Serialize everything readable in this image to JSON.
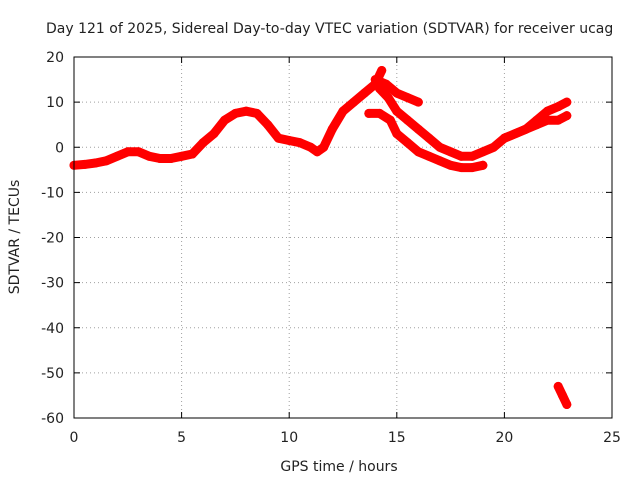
{
  "chart_data": {
    "type": "scatter",
    "title": "Day 121 of 2025, Sidereal Day-to-day VTEC variation (SDTVAR) for receiver ucag",
    "xlabel": "GPS time / hours",
    "ylabel": "SDTVAR / TECUs",
    "xlim": [
      0,
      25
    ],
    "ylim": [
      -60,
      20
    ],
    "xticks": [
      0,
      5,
      10,
      15,
      20,
      25
    ],
    "yticks": [
      -60,
      -50,
      -40,
      -30,
      -20,
      -10,
      0,
      10,
      20
    ],
    "grid": true,
    "legend": "none",
    "series": [
      {
        "name": "main-arc",
        "color": "#ff0000",
        "x": [
          0,
          0.5,
          1,
          1.5,
          2,
          2.5,
          3,
          3.5,
          4,
          4.5,
          5,
          5.5,
          6,
          6.5,
          7,
          7.5,
          8,
          8.5,
          9,
          9.5,
          10,
          10.5,
          11,
          11.3,
          11.6,
          12,
          12.5,
          13,
          13.5,
          14,
          14.3
        ],
        "y": [
          -4,
          -3.8,
          -3.5,
          -3,
          -2,
          -1,
          -1,
          -2,
          -2.5,
          -2.5,
          -2,
          -1.5,
          1,
          3,
          6,
          7.5,
          8,
          7.5,
          5,
          2,
          1.5,
          1,
          0,
          -1,
          0,
          4,
          8,
          10,
          12,
          14,
          17
        ]
      },
      {
        "name": "descending-arc-a",
        "color": "#ff0000",
        "x": [
          14,
          14.5,
          15,
          15.5,
          16
        ],
        "y": [
          15,
          14,
          12,
          11,
          10
        ]
      },
      {
        "name": "descending-arc-b",
        "color": "#ff0000",
        "x": [
          14.2,
          14.6,
          15,
          15.5,
          16,
          16.5,
          17,
          17.5,
          18,
          18.5,
          19,
          19.5,
          20,
          20.5,
          21,
          21.5,
          22,
          22.5,
          22.9
        ],
        "y": [
          13,
          11,
          8,
          6,
          4,
          2,
          0,
          -1,
          -2,
          -2,
          -1,
          0,
          2,
          3,
          4,
          6,
          8,
          9,
          10
        ]
      },
      {
        "name": "descending-arc-c",
        "color": "#ff0000",
        "x": [
          13.7,
          14.2,
          14.7,
          15,
          15.5,
          16,
          16.5,
          17,
          17.5,
          18,
          18.5,
          19
        ],
        "y": [
          7.5,
          7.5,
          6,
          3,
          1,
          -1,
          -2,
          -3,
          -4,
          -4.5,
          -4.5,
          -4
        ]
      },
      {
        "name": "evening-arc",
        "color": "#ff0000",
        "x": [
          20,
          20.5,
          21,
          21.5,
          22,
          22.5,
          22.9
        ],
        "y": [
          2,
          3,
          4,
          5,
          6,
          6,
          7
        ]
      },
      {
        "name": "outlier-arc",
        "color": "#ff0000",
        "x": [
          22.5,
          22.7,
          22.9
        ],
        "y": [
          -53,
          -55,
          -57
        ]
      }
    ]
  }
}
